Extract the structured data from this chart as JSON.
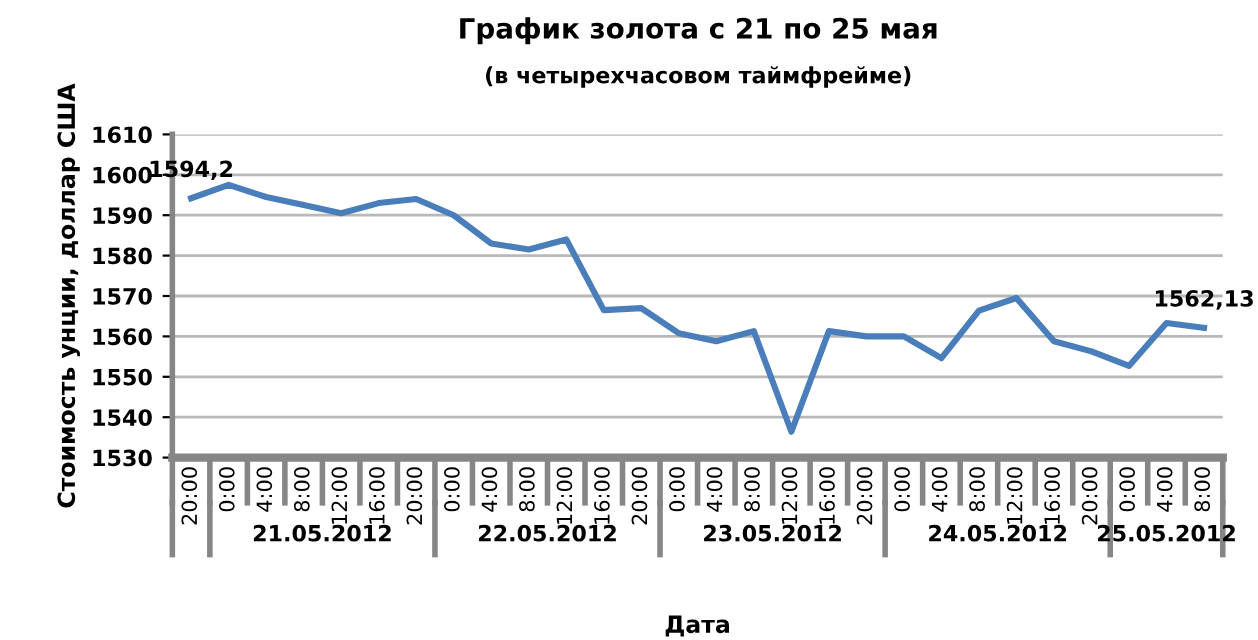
{
  "chart_data": {
    "type": "line",
    "title": "График золота с 21 по 25 мая",
    "subtitle": "(в четырехчасовом таймфрейме)",
    "xlabel": "Дата",
    "ylabel": "Стоимость унции, доллар США",
    "categories": [
      "20:00",
      "0:00",
      "4:00",
      "8:00",
      "12:00",
      "16:00",
      "20:00",
      "0:00",
      "4:00",
      "8:00",
      "12:00",
      "16:00",
      "20:00",
      "0:00",
      "4:00",
      "8:00",
      "12:00",
      "16:00",
      "20:00",
      "0:00",
      "4:00",
      "8:00",
      "12:00",
      "16:00",
      "20:00",
      "0:00",
      "4:00",
      "8:00"
    ],
    "series": [
      {
        "color": "#4a7ebb",
        "values": [
          1594.2,
          1597.5,
          1594.5,
          1592.5,
          1590.5,
          1593,
          1594,
          1590,
          1583,
          1581.5,
          1584,
          1566.5,
          1567,
          1560.8,
          1558.8,
          1561.3,
          1536.4,
          1561.3,
          1560,
          1560,
          1554.6,
          1566.4,
          1569.5,
          1558.8,
          1556.3,
          1552.7,
          1563.3,
          1562.13
        ],
        "value_labels": [
          "1594,2",
          null,
          null,
          null,
          null,
          null,
          null,
          null,
          null,
          null,
          null,
          null,
          null,
          null,
          null,
          null,
          null,
          null,
          null,
          null,
          null,
          null,
          null,
          null,
          null,
          null,
          null,
          "1562,13"
        ]
      }
    ],
    "annotations": [
      "21.05.2012",
      "22.05.2012",
      "23.05.2012",
      "24.05.2012",
      "25.05.2012"
    ],
    "ylim": [
      1530,
      1610
    ],
    "yticks": [
      1530,
      1540,
      1550,
      1560,
      1570,
      1580,
      1590,
      1600,
      1610
    ],
    "grid": "y",
    "marker": "none",
    "line_style": "solid",
    "legend": false
  }
}
